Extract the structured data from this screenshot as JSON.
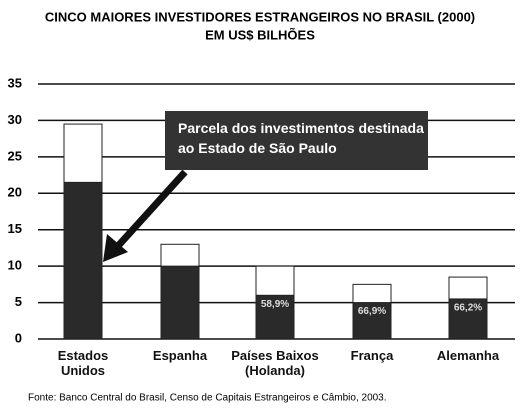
{
  "chart_data": {
    "type": "bar",
    "stacked": true,
    "title": "CINCO MAIORES INVESTIDORES ESTRANGEIROS NO BRASIL (2000)",
    "subtitle": "EM US$ BILHÕES",
    "categories": [
      "Estados Unidos",
      "Espanha",
      "Países Baixos (Holanda)",
      "França",
      "Alemanha"
    ],
    "series": [
      {
        "name": "Parcela dos investimentos destinada ao Estado de São Paulo",
        "color": "#2a2a2a",
        "values": [
          21.5,
          10,
          6,
          5,
          5.5
        ],
        "percent_labels": [
          null,
          null,
          "58,9%",
          "66,9%",
          "66,2%"
        ]
      },
      {
        "color": "#ffffff",
        "values": [
          8,
          3,
          4,
          2.5,
          3
        ]
      }
    ],
    "ylim": [
      0,
      35
    ],
    "yticks": [
      0,
      5,
      10,
      15,
      20,
      25,
      30,
      35
    ],
    "grid": true,
    "source": "Fonte: Banco Central do Brasil, Censo de Capitais Estrangeiros e Câmbio, 2003."
  }
}
